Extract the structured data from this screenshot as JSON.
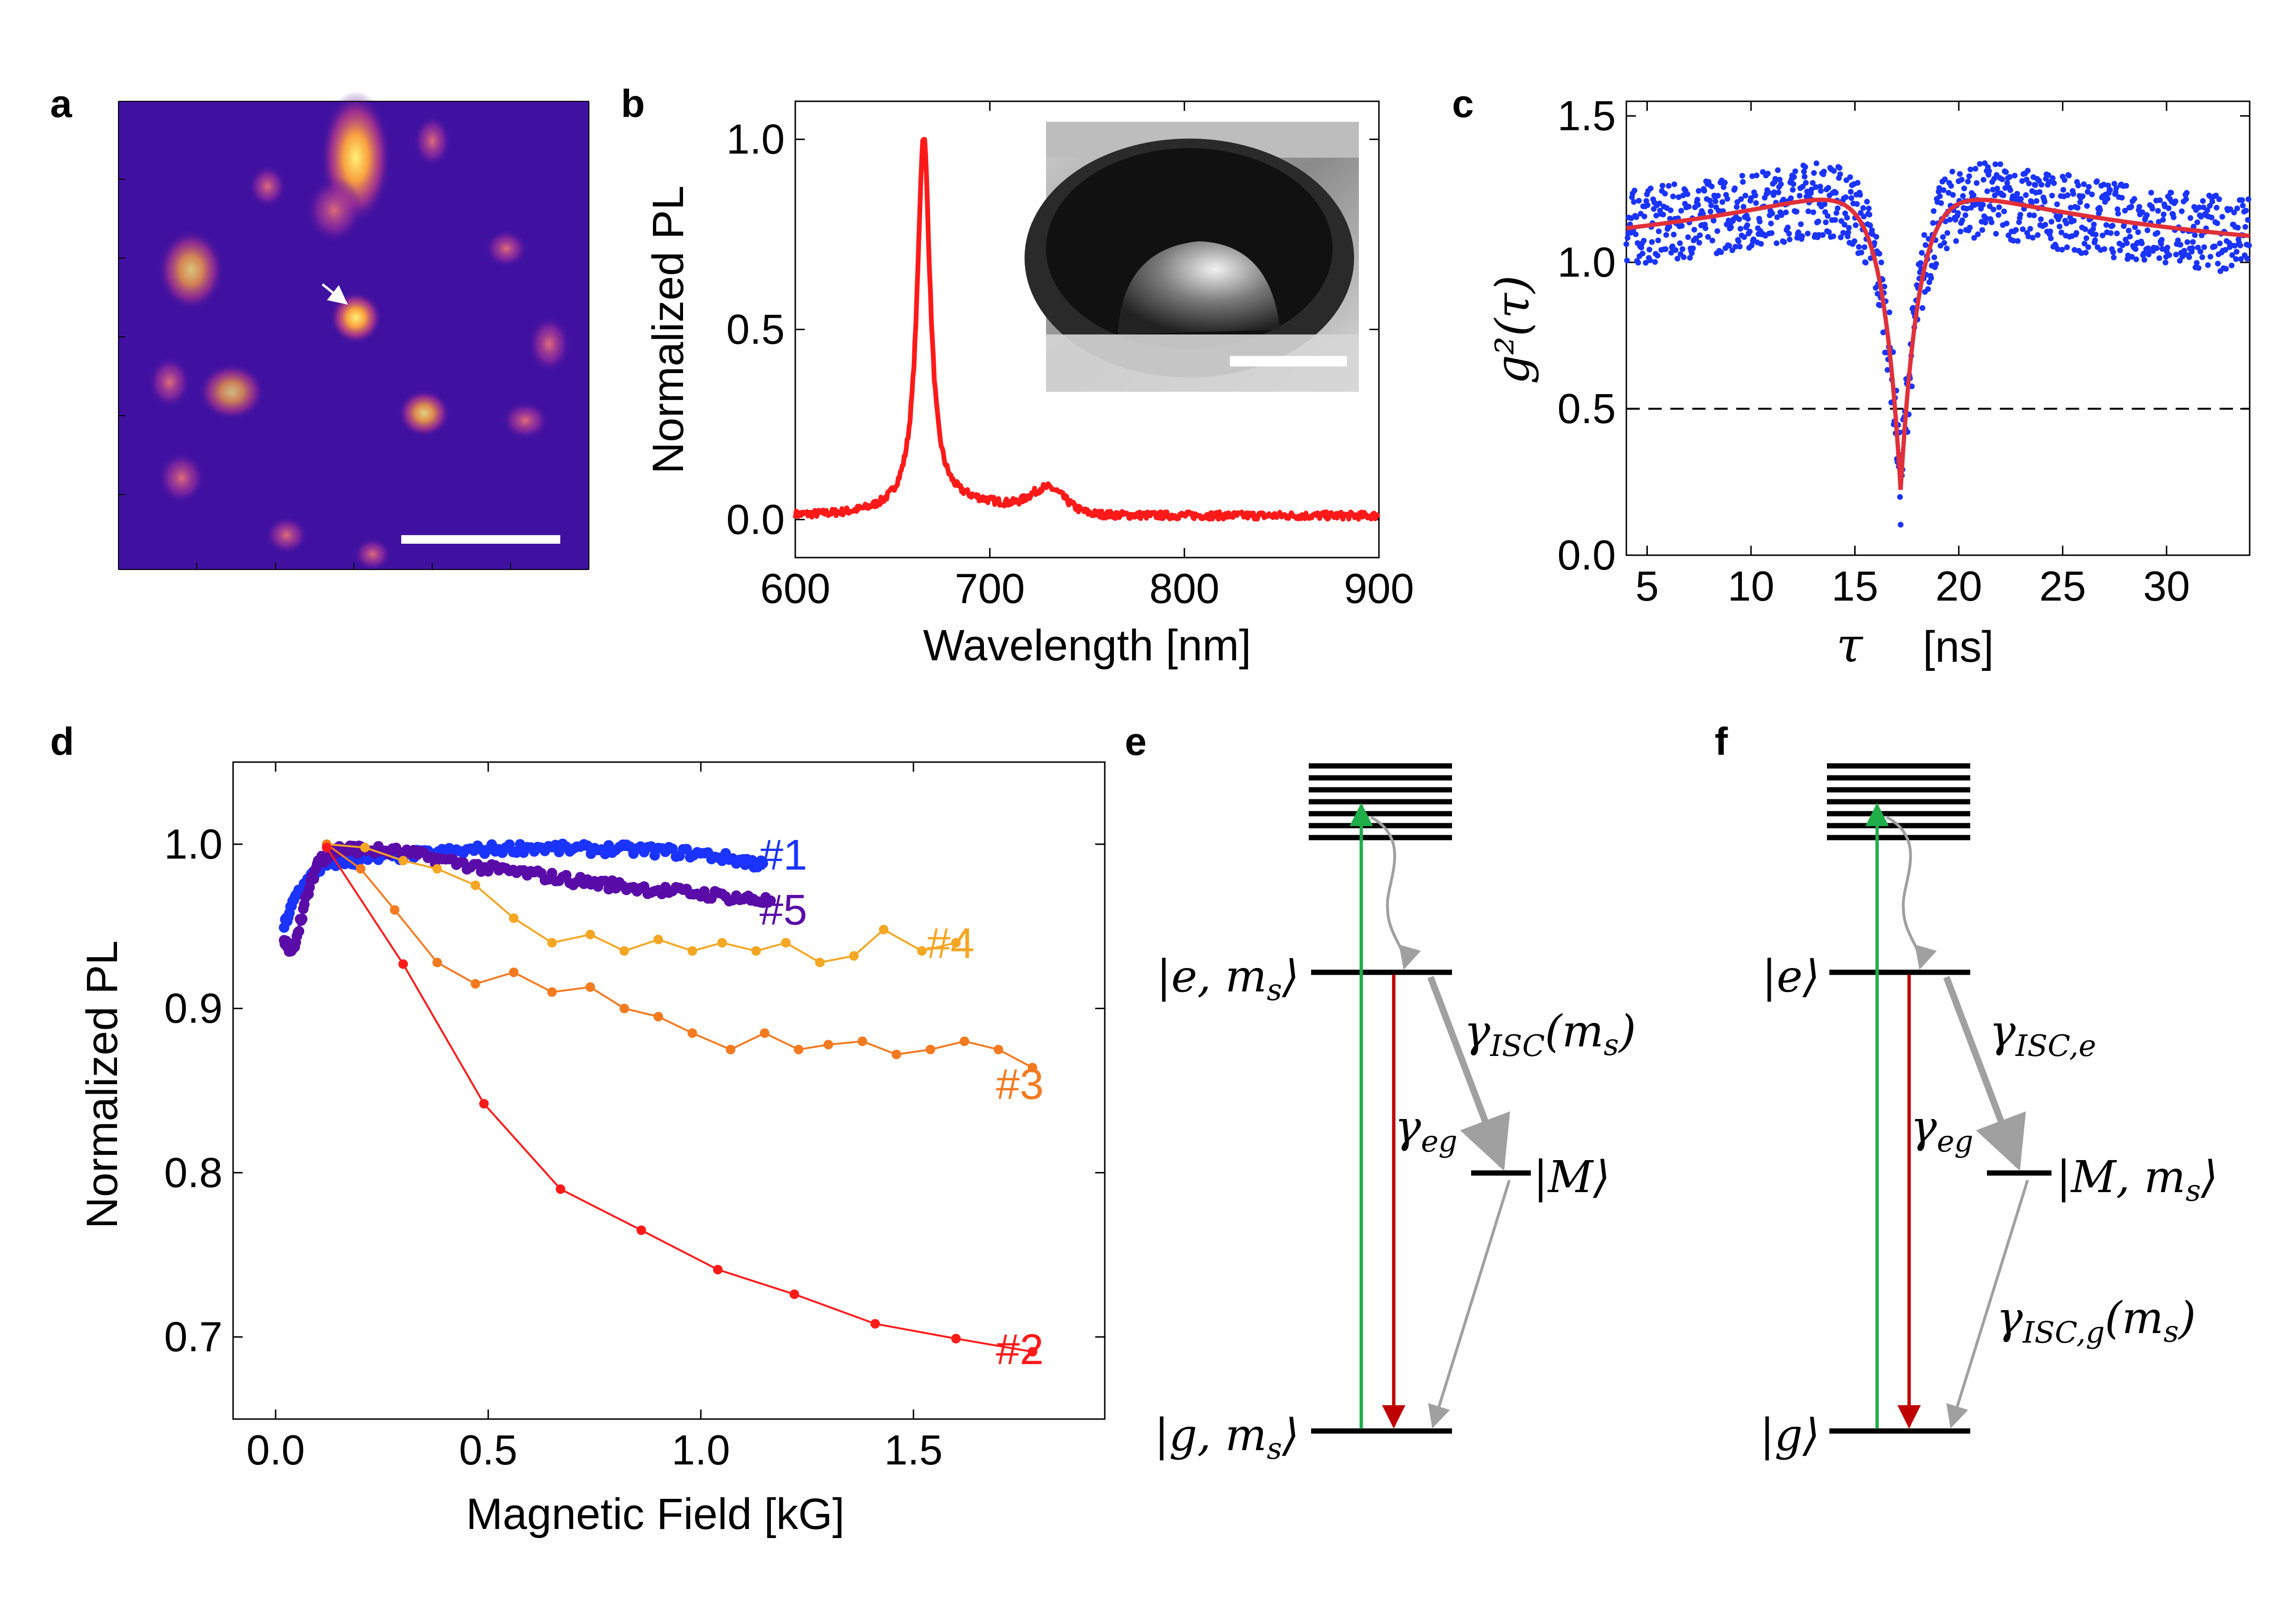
{
  "panel_labels": [
    "a",
    "b",
    "c",
    "d",
    "e",
    "f"
  ],
  "colors": {
    "red": "#ff1a1a",
    "blue": "#1a33ff",
    "purple": "#5a0ca8",
    "orange": "#f47a20",
    "light_orange": "#f5a623",
    "green": "#1fae4a",
    "dark_red": "#c00000",
    "grey": "#a0a0a0"
  },
  "chart_data": [
    {
      "panel": "a",
      "type": "heatmap",
      "title": "",
      "description_colormap": "plasma",
      "arrow": true,
      "scale_bar": true
    },
    {
      "panel": "b",
      "type": "line",
      "xlabel": "Wavelength [nm]",
      "ylabel": "Normalized PL",
      "xlim": [
        600,
        900
      ],
      "ylim": [
        -0.1,
        1.1
      ],
      "xticks": [
        600,
        700,
        800,
        900
      ],
      "yticks": [
        0.0,
        0.5,
        1.0
      ],
      "xtick_labels": [
        "600",
        "700",
        "800",
        "900"
      ],
      "ytick_labels": [
        "0.0",
        "0.5",
        "1.0"
      ],
      "peak_nm": 666,
      "peak_fwhm_nm": 8,
      "secondary_bump_nm": 730,
      "inset": "SEM image with scale bar"
    },
    {
      "panel": "c",
      "type": "scatter",
      "xlabel": "τ [ns]",
      "ylabel": "g²(τ)",
      "xlim": [
        4,
        34
      ],
      "ylim": [
        0,
        1.55
      ],
      "xticks": [
        5,
        10,
        15,
        20,
        25,
        30
      ],
      "yticks": [
        0.0,
        0.5,
        1.0,
        1.5
      ],
      "xtick_labels": [
        "5",
        "10",
        "15",
        "20",
        "25",
        "30"
      ],
      "ytick_labels": [
        "0.0",
        "0.5",
        "1.0",
        "1.5"
      ],
      "dip_center_ns": 17.2,
      "dip_min": 0.22,
      "threshold_line": 0.5,
      "fit": "red line"
    },
    {
      "panel": "d",
      "type": "line",
      "xlabel": "Magnetic Field [kG]",
      "ylabel": "Normalized PL",
      "xlim": [
        -0.1,
        1.95
      ],
      "ylim": [
        0.65,
        1.05
      ],
      "xticks": [
        0.0,
        0.5,
        1.0,
        1.5
      ],
      "yticks": [
        0.7,
        0.8,
        0.9,
        1.0
      ],
      "xtick_labels": [
        "0.0",
        "0.5",
        "1.0",
        "1.5"
      ],
      "ytick_labels": [
        "0.7",
        "0.8",
        "0.9",
        "1.0"
      ],
      "series": [
        {
          "name": "#1",
          "color": "#1a33ff",
          "dense": true,
          "x": [
            0.02,
            0.05,
            0.1,
            0.15,
            0.2,
            0.3,
            0.4,
            0.5,
            0.6,
            0.7,
            0.8,
            0.9,
            1.0,
            1.1,
            1.15
          ],
          "y": [
            0.95,
            0.97,
            0.985,
            0.99,
            0.99,
            0.993,
            0.995,
            0.997,
            0.998,
            0.997,
            0.997,
            0.996,
            0.994,
            0.99,
            0.987
          ]
        },
        {
          "name": "#5",
          "color": "#5a0ca8",
          "dense": true,
          "x": [
            0.02,
            0.04,
            0.07,
            0.1,
            0.15,
            0.2,
            0.3,
            0.4,
            0.5,
            0.6,
            0.7,
            0.8,
            0.9,
            1.0,
            1.1,
            1.17
          ],
          "y": [
            0.94,
            0.935,
            0.965,
            0.99,
            0.997,
            0.997,
            0.995,
            0.99,
            0.985,
            0.982,
            0.978,
            0.975,
            0.972,
            0.97,
            0.967,
            0.965
          ]
        },
        {
          "name": "#4",
          "color": "#f5a623",
          "dense": false,
          "x": [
            0.12,
            0.21,
            0.3,
            0.38,
            0.47,
            0.56,
            0.65,
            0.74,
            0.82,
            0.9,
            0.98,
            1.05,
            1.13,
            1.2,
            1.28,
            1.36,
            1.43,
            1.52,
            1.6
          ],
          "y": [
            1.0,
            0.998,
            0.99,
            0.985,
            0.975,
            0.955,
            0.94,
            0.945,
            0.935,
            0.942,
            0.935,
            0.94,
            0.935,
            0.94,
            0.928,
            0.932,
            0.948,
            0.935,
            0.94
          ]
        },
        {
          "name": "#3",
          "color": "#f47a20",
          "dense": false,
          "x": [
            0.12,
            0.2,
            0.28,
            0.38,
            0.47,
            0.56,
            0.65,
            0.74,
            0.82,
            0.9,
            0.98,
            1.07,
            1.15,
            1.23,
            1.3,
            1.38,
            1.46,
            1.54,
            1.62,
            1.7,
            1.78
          ],
          "y": [
            1.0,
            0.985,
            0.96,
            0.928,
            0.915,
            0.922,
            0.91,
            0.913,
            0.9,
            0.895,
            0.885,
            0.875,
            0.885,
            0.875,
            0.878,
            0.88,
            0.872,
            0.875,
            0.88,
            0.875,
            0.864
          ]
        },
        {
          "name": "#2",
          "color": "#ff1a1a",
          "dense": false,
          "x": [
            0.12,
            0.3,
            0.49,
            0.67,
            0.86,
            1.04,
            1.22,
            1.41,
            1.6,
            1.78
          ],
          "y": [
            0.998,
            0.927,
            0.842,
            0.79,
            0.765,
            0.741,
            0.726,
            0.708,
            0.699,
            0.691
          ]
        }
      ]
    }
  ],
  "energy_diagrams": [
    {
      "panel": "e",
      "excited_label": "|e, m_s⟩",
      "ground_label": "|g, m_s⟩",
      "metastable_label": "|M⟩",
      "rate_isc": "γ_ISC(m_s)",
      "rate_eg": "γ_eg"
    },
    {
      "panel": "f",
      "excited_label": "|e⟩",
      "ground_label": "|g⟩",
      "metastable_label": "|M, m_s⟩",
      "rate_isc_e": "γ_ISC,e",
      "rate_isc_g": "γ_ISC,g(m_s)",
      "rate_eg": "γ_eg"
    }
  ]
}
